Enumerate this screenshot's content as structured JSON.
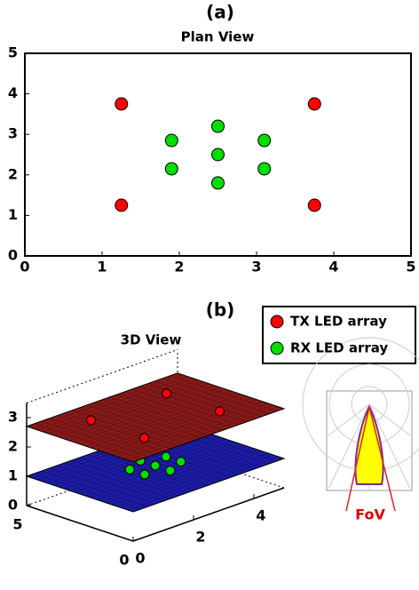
{
  "chart_data": [
    {
      "type": "scatter",
      "panel": "(a)",
      "title": "Plan View",
      "xlim": [
        0,
        5
      ],
      "ylim": [
        0,
        5
      ],
      "xticks": [
        0,
        1,
        2,
        3,
        4,
        5
      ],
      "yticks": [
        0,
        1,
        2,
        3,
        4,
        5
      ],
      "series": [
        {
          "color": "#ff0000",
          "x": [
            1.25,
            1.25,
            3.75,
            3.75
          ],
          "y": [
            1.25,
            3.75,
            1.25,
            3.75
          ]
        },
        {
          "color": "#00dd00",
          "x": [
            2.5,
            2.5,
            2.5,
            1.9,
            1.9,
            3.1,
            3.1
          ],
          "y": [
            2.5,
            3.2,
            1.8,
            2.85,
            2.15,
            2.85,
            2.15
          ]
        }
      ]
    },
    {
      "type": "scatter3d",
      "panel": "(b)",
      "title": "3D View",
      "annotation": "FoV",
      "xlim": [
        0,
        5
      ],
      "ylim": [
        0,
        5
      ],
      "zlim": [
        0,
        3.5
      ],
      "xticks": [
        0,
        2,
        4
      ],
      "yticks": [
        0,
        5
      ],
      "zticks": [
        0,
        1,
        2,
        3
      ],
      "planes": [
        {
          "z": 1,
          "color": "#1c1ca8"
        },
        {
          "z": 2.7,
          "color": "#8a1a1a"
        }
      ],
      "series": [
        {
          "name": "TX LED array",
          "color": "#ff0000",
          "x": [
            1.25,
            1.25,
            3.75,
            3.75
          ],
          "y": [
            1.25,
            3.75,
            1.25,
            3.75
          ],
          "z": [
            2.7,
            2.7,
            2.7,
            2.7
          ]
        },
        {
          "name": "RX LED array",
          "color": "#00dd00",
          "x": [
            2.5,
            2.5,
            2.5,
            1.9,
            1.9,
            3.1,
            3.1
          ],
          "y": [
            2.5,
            3.2,
            1.8,
            2.85,
            2.15,
            2.85,
            2.15
          ],
          "z": [
            1,
            1,
            1,
            1,
            1,
            1,
            1
          ]
        }
      ]
    }
  ]
}
